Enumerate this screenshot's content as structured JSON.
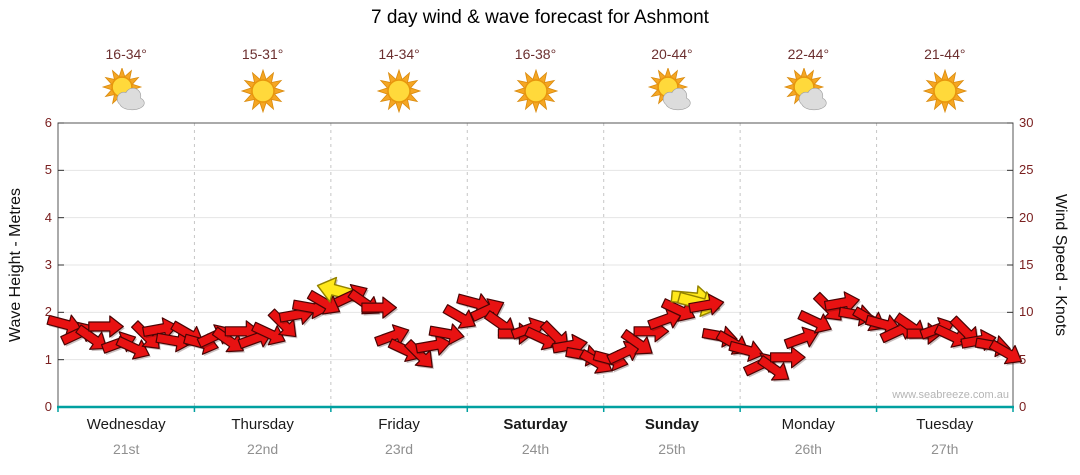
{
  "title": "7 day wind & wave forecast for Ashmont",
  "watermark": "www.seabreeze.com.au",
  "axes": {
    "left": {
      "label": "Wave Height - Metres",
      "ticks": [
        0,
        1,
        2,
        3,
        4,
        5,
        6
      ],
      "range": [
        0,
        6
      ]
    },
    "right": {
      "label": "Wind Speed - Knots",
      "ticks": [
        0,
        5,
        10,
        15,
        20,
        25,
        30
      ],
      "range": [
        0,
        30
      ]
    }
  },
  "days": [
    {
      "name": "Wednesday",
      "date": "21st",
      "temp": "16-34°",
      "icon": "sun-cloud",
      "bold": false
    },
    {
      "name": "Thursday",
      "date": "22nd",
      "temp": "15-31°",
      "icon": "sun",
      "bold": false
    },
    {
      "name": "Friday",
      "date": "23rd",
      "temp": "14-34°",
      "icon": "sun",
      "bold": false
    },
    {
      "name": "Saturday",
      "date": "24th",
      "temp": "16-38°",
      "icon": "sun",
      "bold": true
    },
    {
      "name": "Sunday",
      "date": "25th",
      "temp": "20-44°",
      "icon": "sun-cloud",
      "bold": true
    },
    {
      "name": "Monday",
      "date": "26th",
      "temp": "22-44°",
      "icon": "sun-cloud",
      "bold": false
    },
    {
      "name": "Tuesday",
      "date": "27th",
      "temp": "21-44°",
      "icon": "sun",
      "bold": false
    }
  ],
  "colors": {
    "arrow_red": "#E81212",
    "arrow_red_outline": "#4A0404",
    "arrow_yellow": "#FFE81A",
    "arrow_yellow_outline": "#938200",
    "bottom_axis_teal": "#00A0A0",
    "tick_text": "#7A2020",
    "temp_text": "#6B2F2F",
    "date_text": "#909090",
    "gridline": "#E4E4E4",
    "day_separator": "#C6C6C6"
  },
  "chart_data": {
    "type": "wind-arrows",
    "title": "7 day wind & wave forecast for Ashmont",
    "x_axis": "days Wednesday 21st through Tuesday 27th",
    "wave_height_axis_range_m": [
      0,
      6
    ],
    "wind_speed_axis_range_kn": [
      0,
      30
    ],
    "grid": true,
    "point_format": [
      "week_fraction",
      "wave_height_m",
      "direction_deg",
      "color"
    ],
    "points": [
      [
        0.007,
        1.75,
        15,
        "red"
      ],
      [
        0.021,
        1.55,
        -25,
        "red"
      ],
      [
        0.036,
        1.45,
        35,
        "red"
      ],
      [
        0.05,
        1.7,
        0,
        "red"
      ],
      [
        0.064,
        1.35,
        -20,
        "red"
      ],
      [
        0.079,
        1.25,
        25,
        "red"
      ],
      [
        0.093,
        1.5,
        45,
        "red"
      ],
      [
        0.107,
        1.65,
        -10,
        "red"
      ],
      [
        0.121,
        1.4,
        10,
        "red"
      ],
      [
        0.136,
        1.55,
        30,
        "red"
      ],
      [
        0.15,
        1.35,
        15,
        "red"
      ],
      [
        0.164,
        1.5,
        -25,
        "red"
      ],
      [
        0.179,
        1.4,
        35,
        "red"
      ],
      [
        0.193,
        1.6,
        0,
        "red"
      ],
      [
        0.207,
        1.45,
        -20,
        "red"
      ],
      [
        0.221,
        1.55,
        25,
        "red"
      ],
      [
        0.236,
        1.75,
        45,
        "red"
      ],
      [
        0.25,
        1.95,
        -10,
        "red"
      ],
      [
        0.264,
        2.1,
        10,
        "red"
      ],
      [
        0.279,
        2.2,
        30,
        "red"
      ],
      [
        0.293,
        2.45,
        195,
        "yellow"
      ],
      [
        0.307,
        2.35,
        -25,
        "red"
      ],
      [
        0.321,
        2.2,
        35,
        "red"
      ],
      [
        0.336,
        2.1,
        0,
        "red"
      ],
      [
        0.35,
        1.5,
        -20,
        "red"
      ],
      [
        0.364,
        1.2,
        25,
        "red"
      ],
      [
        0.379,
        1.1,
        45,
        "red"
      ],
      [
        0.393,
        1.3,
        -10,
        "red"
      ],
      [
        0.407,
        1.55,
        10,
        "red"
      ],
      [
        0.421,
        1.9,
        30,
        "red"
      ],
      [
        0.436,
        2.2,
        15,
        "red"
      ],
      [
        0.45,
        2.05,
        -25,
        "red"
      ],
      [
        0.464,
        1.75,
        35,
        "red"
      ],
      [
        0.479,
        1.55,
        0,
        "red"
      ],
      [
        0.493,
        1.65,
        -20,
        "red"
      ],
      [
        0.507,
        1.45,
        25,
        "red"
      ],
      [
        0.521,
        1.5,
        45,
        "red"
      ],
      [
        0.536,
        1.3,
        -10,
        "red"
      ],
      [
        0.55,
        1.1,
        10,
        "red"
      ],
      [
        0.564,
        0.95,
        30,
        "red"
      ],
      [
        0.579,
        1.0,
        15,
        "red"
      ],
      [
        0.593,
        1.15,
        -25,
        "red"
      ],
      [
        0.607,
        1.35,
        35,
        "red"
      ],
      [
        0.621,
        1.6,
        0,
        "red"
      ],
      [
        0.636,
        1.85,
        -20,
        "red"
      ],
      [
        0.65,
        2.05,
        25,
        "red"
      ],
      [
        0.664,
        2.3,
        5,
        "yellow"
      ],
      [
        0.671,
        2.2,
        15,
        "yellow"
      ],
      [
        0.679,
        2.15,
        -10,
        "red"
      ],
      [
        0.693,
        1.5,
        10,
        "red"
      ],
      [
        0.707,
        1.35,
        30,
        "red"
      ],
      [
        0.721,
        1.2,
        15,
        "red"
      ],
      [
        0.736,
        0.9,
        -25,
        "red"
      ],
      [
        0.75,
        0.8,
        35,
        "red"
      ],
      [
        0.764,
        1.05,
        0,
        "red"
      ],
      [
        0.779,
        1.45,
        -20,
        "red"
      ],
      [
        0.793,
        1.8,
        25,
        "red"
      ],
      [
        0.807,
        2.1,
        45,
        "red"
      ],
      [
        0.821,
        2.2,
        -10,
        "red"
      ],
      [
        0.836,
        1.95,
        10,
        "red"
      ],
      [
        0.85,
        1.85,
        30,
        "red"
      ],
      [
        0.864,
        1.75,
        15,
        "red"
      ],
      [
        0.879,
        1.6,
        -25,
        "red"
      ],
      [
        0.893,
        1.7,
        35,
        "red"
      ],
      [
        0.907,
        1.55,
        0,
        "red"
      ],
      [
        0.921,
        1.65,
        -20,
        "red"
      ],
      [
        0.936,
        1.5,
        25,
        "red"
      ],
      [
        0.95,
        1.6,
        45,
        "red"
      ],
      [
        0.964,
        1.4,
        -10,
        "red"
      ],
      [
        0.979,
        1.3,
        10,
        "red"
      ],
      [
        0.993,
        1.15,
        30,
        "red"
      ]
    ]
  }
}
